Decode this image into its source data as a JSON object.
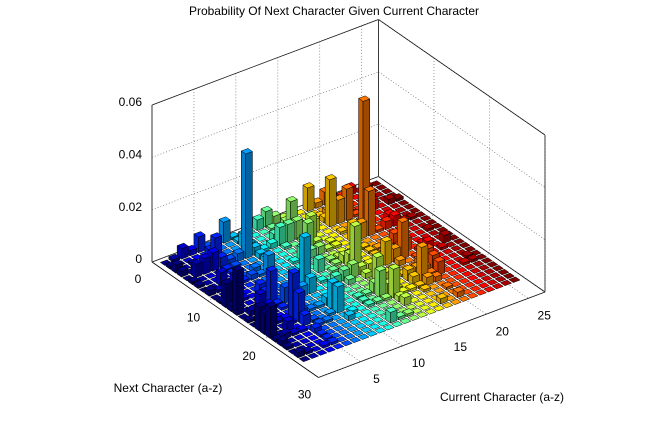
{
  "chart_data": {
    "type": "bar3",
    "title": "Probability Of Next Character Given Current Character",
    "xlabel": "Current Character (a-z)",
    "ylabel": "Next Character (a-z)",
    "colormap": "jet",
    "xlim": [
      0,
      27
    ],
    "xticks": [
      5,
      10,
      15,
      20,
      25
    ],
    "ylim": [
      0,
      30
    ],
    "yticks": [
      0,
      10,
      20,
      30
    ],
    "zlim": [
      0,
      0.06
    ],
    "zticks": [
      0,
      0.02,
      0.04,
      0.06
    ],
    "grid": true,
    "values": [
      [
        0,
        0.001,
        0.003,
        0.002,
        0,
        0.001,
        0.001,
        0,
        0.002,
        0,
        0.001,
        0.009,
        0.002,
        0.017,
        0,
        0.001,
        0,
        0.009,
        0.008,
        0.012,
        0.001,
        0.002,
        0.001,
        0,
        0.002,
        0
      ],
      [
        0.001,
        0,
        0,
        0,
        0.005,
        0,
        0,
        0,
        0.001,
        0,
        0,
        0.002,
        0,
        0,
        0.002,
        0,
        0,
        0.001,
        0,
        0,
        0.002,
        0,
        0,
        0,
        0.001,
        0
      ],
      [
        0.004,
        0,
        0.001,
        0,
        0.006,
        0,
        0,
        0.005,
        0.002,
        0,
        0.001,
        0.001,
        0,
        0,
        0.007,
        0,
        0,
        0.001,
        0,
        0.004,
        0.001,
        0,
        0,
        0,
        0,
        0
      ],
      [
        0.002,
        0,
        0,
        0.001,
        0.007,
        0,
        0,
        0,
        0.004,
        0,
        0,
        0,
        0,
        0,
        0.002,
        0,
        0,
        0.001,
        0.001,
        0,
        0.001,
        0,
        0,
        0,
        0.001,
        0
      ],
      [
        0.006,
        0,
        0.004,
        0.01,
        0.004,
        0.001,
        0.001,
        0,
        0.001,
        0,
        0,
        0.004,
        0.003,
        0.012,
        0.001,
        0.001,
        0,
        0.017,
        0.011,
        0.004,
        0,
        0.002,
        0.001,
        0.001,
        0.001,
        0
      ],
      [
        0.001,
        0,
        0,
        0,
        0.002,
        0.001,
        0,
        0,
        0.002,
        0,
        0,
        0,
        0,
        0,
        0.006,
        0,
        0,
        0.002,
        0,
        0.001,
        0.001,
        0,
        0,
        0,
        0,
        0
      ],
      [
        0.001,
        0,
        0,
        0,
        0.003,
        0,
        0,
        0.002,
        0.001,
        0,
        0,
        0,
        0,
        0,
        0.001,
        0,
        0,
        0.001,
        0,
        0,
        0.001,
        0,
        0,
        0,
        0,
        0
      ],
      [
        0.008,
        0,
        0,
        0,
        0.04,
        0,
        0,
        0,
        0.007,
        0,
        0,
        0,
        0,
        0,
        0.004,
        0,
        0,
        0.001,
        0,
        0.001,
        0,
        0,
        0,
        0,
        0,
        0
      ],
      [
        0.001,
        0.001,
        0.005,
        0.003,
        0.003,
        0.002,
        0.002,
        0,
        0,
        0,
        0,
        0.004,
        0.002,
        0.02,
        0.006,
        0,
        0,
        0.003,
        0.01,
        0.01,
        0,
        0.002,
        0,
        0,
        0,
        0
      ],
      [
        0,
        0,
        0,
        0,
        0.001,
        0,
        0,
        0,
        0,
        0,
        0,
        0,
        0,
        0,
        0,
        0,
        0,
        0,
        0,
        0,
        0.001,
        0,
        0,
        0,
        0,
        0
      ],
      [
        0,
        0,
        0,
        0,
        0.002,
        0,
        0,
        0,
        0.001,
        0,
        0,
        0,
        0,
        0.001,
        0,
        0,
        0,
        0,
        0,
        0,
        0,
        0,
        0,
        0,
        0,
        0
      ],
      [
        0.004,
        0,
        0,
        0.003,
        0.007,
        0.001,
        0,
        0,
        0.005,
        0,
        0,
        0.005,
        0,
        0,
        0.003,
        0,
        0,
        0,
        0.001,
        0.001,
        0.001,
        0,
        0,
        0,
        0.004,
        0
      ],
      [
        0.006,
        0.001,
        0,
        0,
        0.007,
        0,
        0,
        0,
        0.003,
        0,
        0,
        0,
        0.001,
        0,
        0.004,
        0.002,
        0,
        0,
        0.001,
        0,
        0.001,
        0,
        0,
        0,
        0.001,
        0
      ],
      [
        0.003,
        0,
        0.004,
        0.013,
        0.007,
        0.001,
        0.009,
        0,
        0.003,
        0,
        0.001,
        0.001,
        0,
        0.001,
        0.005,
        0,
        0,
        0,
        0.004,
        0.01,
        0.001,
        0,
        0,
        0,
        0.001,
        0
      ],
      [
        0.001,
        0.001,
        0.002,
        0.002,
        0,
        0.009,
        0.001,
        0,
        0.001,
        0,
        0.001,
        0.003,
        0.005,
        0.017,
        0.003,
        0.002,
        0,
        0.011,
        0.003,
        0.004,
        0.011,
        0.002,
        0.003,
        0,
        0,
        0
      ],
      [
        0.003,
        0,
        0,
        0,
        0.005,
        0,
        0,
        0.001,
        0.001,
        0,
        0,
        0.003,
        0,
        0,
        0.003,
        0.001,
        0,
        0.004,
        0.001,
        0.001,
        0.001,
        0,
        0,
        0,
        0,
        0
      ],
      [
        0,
        0,
        0,
        0,
        0,
        0,
        0,
        0,
        0,
        0,
        0,
        0,
        0,
        0,
        0,
        0,
        0,
        0,
        0,
        0,
        0.001,
        0,
        0,
        0,
        0,
        0
      ],
      [
        0.009,
        0,
        0.001,
        0.002,
        0.018,
        0,
        0.001,
        0,
        0.007,
        0,
        0.001,
        0.001,
        0.001,
        0.002,
        0.009,
        0,
        0,
        0.001,
        0.004,
        0.003,
        0.001,
        0.001,
        0,
        0,
        0.002,
        0
      ],
      [
        0.002,
        0,
        0.002,
        0,
        0.009,
        0,
        0,
        0.004,
        0.006,
        0,
        0,
        0.001,
        0.001,
        0,
        0.005,
        0.002,
        0,
        0,
        0.004,
        0.013,
        0.003,
        0,
        0,
        0,
        0,
        0
      ],
      [
        0.005,
        0,
        0,
        0,
        0.012,
        0,
        0,
        0.05,
        0.017,
        0,
        0,
        0.001,
        0,
        0,
        0.014,
        0,
        0,
        0.004,
        0.003,
        0.002,
        0.002,
        0,
        0.001,
        0,
        0.002,
        0
      ],
      [
        0.001,
        0.001,
        0.002,
        0.001,
        0.001,
        0,
        0.001,
        0,
        0.001,
        0,
        0,
        0.004,
        0.001,
        0.005,
        0,
        0.001,
        0,
        0.007,
        0.006,
        0.005,
        0,
        0,
        0,
        0,
        0,
        0
      ],
      [
        0.001,
        0,
        0,
        0,
        0.01,
        0,
        0,
        0,
        0.003,
        0,
        0,
        0,
        0,
        0,
        0.001,
        0,
        0,
        0,
        0,
        0,
        0,
        0,
        0,
        0,
        0,
        0
      ],
      [
        0.003,
        0,
        0,
        0,
        0.004,
        0,
        0,
        0.003,
        0.004,
        0,
        0,
        0,
        0,
        0.001,
        0.003,
        0,
        0,
        0,
        0,
        0,
        0,
        0,
        0,
        0,
        0,
        0
      ],
      [
        0,
        0,
        0.001,
        0,
        0,
        0,
        0,
        0,
        0.001,
        0,
        0,
        0,
        0,
        0,
        0,
        0.001,
        0,
        0,
        0,
        0.001,
        0,
        0,
        0,
        0,
        0,
        0
      ],
      [
        0.001,
        0,
        0,
        0,
        0.002,
        0,
        0,
        0,
        0.001,
        0,
        0,
        0.001,
        0,
        0,
        0.003,
        0,
        0,
        0,
        0.001,
        0.001,
        0,
        0,
        0,
        0,
        0,
        0
      ],
      [
        0,
        0,
        0,
        0,
        0.001,
        0,
        0,
        0,
        0,
        0,
        0,
        0,
        0,
        0,
        0,
        0,
        0,
        0,
        0,
        0,
        0,
        0,
        0,
        0,
        0,
        0
      ]
    ]
  }
}
